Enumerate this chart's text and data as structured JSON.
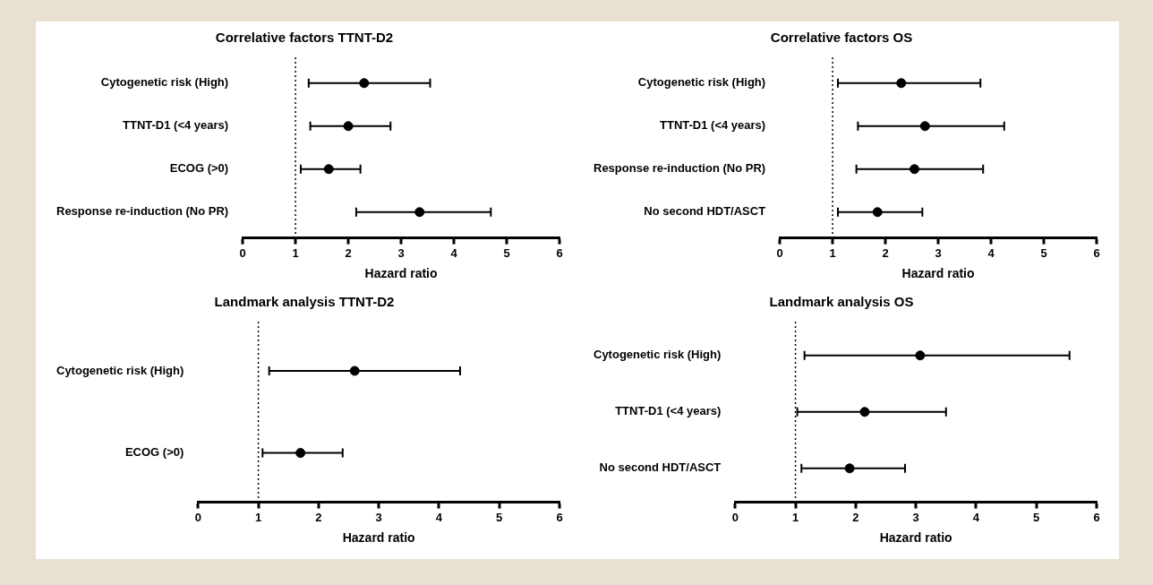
{
  "chart_data": [
    {
      "type": "scatter",
      "orientation": "horizontal",
      "title": "Correlative factors TTNT-D2",
      "xlabel": "Hazard ratio",
      "categories": [
        "Cytogenetic risk (High)",
        "TTNT-D1 (<4 years)",
        "ECOG (>0)",
        "Response re-induction (No PR)"
      ],
      "values": [
        2.3,
        2.0,
        1.63,
        3.35
      ],
      "errors": [
        [
          1.25,
          3.55
        ],
        [
          1.28,
          2.8
        ],
        [
          1.1,
          2.23
        ],
        [
          2.15,
          4.7
        ]
      ],
      "color": "#000000",
      "marker": "circle",
      "xlim": [
        0,
        6
      ],
      "xticks": [
        0,
        1,
        2,
        3,
        4,
        5,
        6
      ],
      "ref_lines": [
        {
          "axis": "x",
          "value": 1,
          "line_style": "dotted"
        }
      ]
    },
    {
      "type": "scatter",
      "orientation": "horizontal",
      "title": "Correlative factors OS",
      "xlabel": "Hazard ratio",
      "categories": [
        "Cytogenetic risk (High)",
        "TTNT-D1 (<4 years)",
        "Response re-induction (No PR)",
        "No second HDT/ASCT"
      ],
      "values": [
        2.3,
        2.75,
        2.55,
        1.85
      ],
      "errors": [
        [
          1.1,
          3.8
        ],
        [
          1.48,
          4.25
        ],
        [
          1.45,
          3.85
        ],
        [
          1.1,
          2.7
        ]
      ],
      "color": "#000000",
      "marker": "circle",
      "xlim": [
        0,
        6
      ],
      "xticks": [
        0,
        1,
        2,
        3,
        4,
        5,
        6
      ],
      "ref_lines": [
        {
          "axis": "x",
          "value": 1,
          "line_style": "dotted"
        }
      ]
    },
    {
      "type": "scatter",
      "orientation": "horizontal",
      "title": "Landmark analysis TTNT-D2",
      "xlabel": "Hazard ratio",
      "categories": [
        "Cytogenetic risk (High)",
        "ECOG (>0)"
      ],
      "values": [
        2.6,
        1.7
      ],
      "errors": [
        [
          1.18,
          4.35
        ],
        [
          1.07,
          2.4
        ]
      ],
      "color": "#000000",
      "marker": "circle",
      "xlim": [
        0,
        6
      ],
      "xticks": [
        0,
        1,
        2,
        3,
        4,
        5,
        6
      ],
      "ref_lines": [
        {
          "axis": "x",
          "value": 1,
          "line_style": "dotted"
        }
      ]
    },
    {
      "type": "scatter",
      "orientation": "horizontal",
      "title": "Landmark analysis OS",
      "xlabel": "Hazard ratio",
      "categories": [
        "Cytogenetic risk (High)",
        "TTNT-D1 (<4 years)",
        "No second HDT/ASCT"
      ],
      "values": [
        3.07,
        2.15,
        1.9
      ],
      "errors": [
        [
          1.15,
          5.55
        ],
        [
          1.03,
          3.5
        ],
        [
          1.1,
          2.82
        ]
      ],
      "color": "#000000",
      "marker": "circle",
      "xlim": [
        0,
        6
      ],
      "xticks": [
        0,
        1,
        2,
        3,
        4,
        5,
        6
      ],
      "ref_lines": [
        {
          "axis": "x",
          "value": 1,
          "line_style": "dotted"
        }
      ]
    }
  ]
}
